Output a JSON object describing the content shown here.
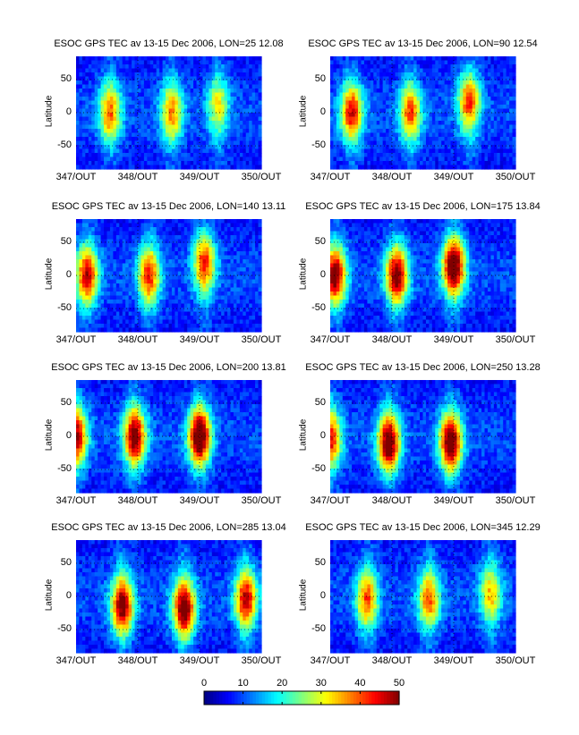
{
  "chart_data": {
    "type": "heatmap",
    "colorbar": {
      "ticks": [
        "0",
        "10",
        "20",
        "30",
        "40",
        "50"
      ],
      "range": [
        0,
        50
      ],
      "colormap": "jet"
    },
    "panels": [
      {
        "title": "ESOC GPS TEC av 13-15 Dec 2006, LON=25  12.08",
        "ylabel": "Latitude",
        "xticks": [
          "347/OUT",
          "348/OUT",
          "349/OUT",
          "350/OUT"
        ],
        "yticks": [
          "50",
          "0",
          "-50"
        ],
        "ylim": [
          -85,
          85
        ],
        "peaks": [
          {
            "day": 347.55,
            "lat": 0,
            "value": 32
          },
          {
            "day": 348.55,
            "lat": 0,
            "value": 30
          },
          {
            "day": 349.3,
            "lat": 12,
            "value": 24
          }
        ]
      },
      {
        "title": "ESOC GPS TEC av 13-15 Dec 2006, LON=90  12.54",
        "ylabel": "Latitude",
        "xticks": [
          "347/OUT",
          "348/OUT",
          "349/OUT",
          "350/OUT"
        ],
        "yticks": [
          "50",
          "0",
          "-50"
        ],
        "ylim": [
          -85,
          85
        ],
        "peaks": [
          {
            "day": 347.35,
            "lat": 0,
            "value": 38
          },
          {
            "day": 348.3,
            "lat": 0,
            "value": 33
          },
          {
            "day": 349.25,
            "lat": 18,
            "value": 35
          }
        ]
      },
      {
        "title": "ESOC GPS TEC av 13-15 Dec 2006, LON=140  13.11",
        "ylabel": "Latitude",
        "xticks": [
          "347/OUT",
          "348/OUT",
          "349/OUT",
          "350/OUT"
        ],
        "yticks": [
          "50",
          "0",
          "-50"
        ],
        "ylim": [
          -85,
          85
        ],
        "peaks": [
          {
            "day": 347.18,
            "lat": 0,
            "value": 40
          },
          {
            "day": 348.18,
            "lat": 0,
            "value": 36
          },
          {
            "day": 349.08,
            "lat": 20,
            "value": 36
          }
        ]
      },
      {
        "title": "ESOC GPS TEC av 13-15 Dec 2006, LON=175  13.84",
        "ylabel": "Latitude",
        "xticks": [
          "347/OUT",
          "348/OUT",
          "349/OUT",
          "350/OUT"
        ],
        "yticks": [
          "50",
          "0",
          "-50"
        ],
        "ylim": [
          -85,
          85
        ],
        "peaks": [
          {
            "day": 347.08,
            "lat": 0,
            "value": 45
          },
          {
            "day": 348.08,
            "lat": 0,
            "value": 45
          },
          {
            "day": 349.0,
            "lat": 15,
            "value": 50
          }
        ]
      },
      {
        "title": "ESOC GPS TEC av 13-15 Dec 2006, LON=200  13.81",
        "ylabel": "Latitude",
        "xticks": [
          "347/OUT",
          "348/OUT",
          "349/OUT",
          "350/OUT"
        ],
        "yticks": [
          "50",
          "0",
          "-50"
        ],
        "ylim": [
          -85,
          85
        ],
        "peaks": [
          {
            "day": 347.0,
            "lat": 0,
            "value": 42
          },
          {
            "day": 347.95,
            "lat": 0,
            "value": 45
          },
          {
            "day": 349.0,
            "lat": 0,
            "value": 50
          }
        ]
      },
      {
        "title": "ESOC GPS TEC av 13-15 Dec 2006, LON=250  13.28",
        "ylabel": "Latitude",
        "xticks": [
          "347/OUT",
          "348/OUT",
          "349/OUT",
          "350/OUT"
        ],
        "yticks": [
          "50",
          "0",
          "-50"
        ],
        "ylim": [
          -85,
          85
        ],
        "peaks": [
          {
            "day": 347.0,
            "lat": -5,
            "value": 38
          },
          {
            "day": 347.95,
            "lat": -10,
            "value": 48
          },
          {
            "day": 348.95,
            "lat": -10,
            "value": 48
          }
        ]
      },
      {
        "title": "ESOC GPS TEC av 13-15 Dec 2006, LON=285  13.04",
        "ylabel": "Latitude",
        "xticks": [
          "347/OUT",
          "348/OUT",
          "349/OUT",
          "350/OUT"
        ],
        "yticks": [
          "50",
          "0",
          "-50"
        ],
        "ylim": [
          -85,
          85
        ],
        "peaks": [
          {
            "day": 347.75,
            "lat": -15,
            "value": 45
          },
          {
            "day": 348.75,
            "lat": -20,
            "value": 48
          },
          {
            "day": 349.75,
            "lat": -5,
            "value": 40
          }
        ]
      },
      {
        "title": "ESOC GPS TEC av 13-15 Dec 2006, LON=345  12.29",
        "ylabel": "Latitude",
        "xticks": [
          "347/OUT",
          "348/OUT",
          "349/OUT",
          "350/OUT"
        ],
        "yticks": [
          "50",
          "0",
          "-50"
        ],
        "ylim": [
          -85,
          85
        ],
        "peaks": [
          {
            "day": 347.6,
            "lat": -5,
            "value": 33
          },
          {
            "day": 348.6,
            "lat": -5,
            "value": 32
          },
          {
            "day": 349.6,
            "lat": 5,
            "value": 27
          }
        ]
      }
    ]
  }
}
